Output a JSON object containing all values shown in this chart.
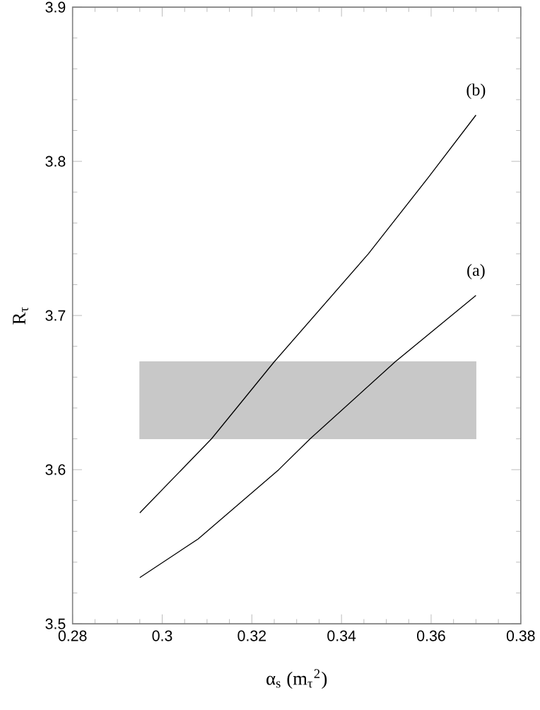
{
  "chart_data": {
    "type": "line",
    "xlabel": "α$_{s}$ (m$_{τ}$$^{2}$)",
    "ylabel": "R$_{τ}$",
    "series": [
      {
        "color": "#000000",
        "x": [
          0.295,
          0.308,
          0.326,
          0.333,
          0.352,
          0.37
        ],
        "values": [
          3.53,
          3.555,
          3.6,
          3.62,
          3.67,
          3.713
        ]
      },
      {
        "color": "#000000",
        "x": [
          0.295,
          0.311,
          0.325,
          0.346,
          0.3595,
          0.37
        ],
        "values": [
          3.572,
          3.62,
          3.67,
          3.74,
          3.79,
          3.83
        ]
      }
    ],
    "bands": [
      {
        "axis": "y",
        "from": 3.62,
        "to": 3.67,
        "color": "#c8c8c8"
      }
    ],
    "annotations": [
      {
        "text": "(a)",
        "x": 0.37,
        "y": 3.713
      },
      {
        "text": "(b)",
        "x": 0.37,
        "y": 3.83
      }
    ],
    "xlim": [
      0.28,
      0.38
    ],
    "ylim": [
      3.5,
      3.9
    ],
    "xticks": [
      0.28,
      0.3,
      0.32,
      0.34,
      0.36,
      0.38
    ],
    "yticks": [
      3.5,
      3.6,
      3.7,
      3.8,
      3.9
    ],
    "grid": false,
    "marker": "none",
    "line_style": "solid"
  }
}
